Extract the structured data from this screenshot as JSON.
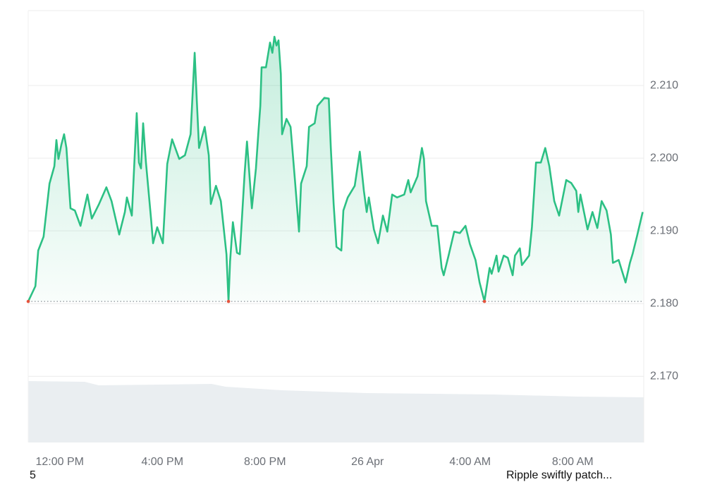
{
  "chart_data": {
    "type": "line",
    "color": "#2cc084",
    "grid": true,
    "x": [
      10.77,
      11.05,
      11.16,
      11.37,
      11.6,
      11.79,
      11.87,
      11.95,
      12.06,
      12.17,
      12.26,
      12.42,
      12.59,
      12.81,
      13.08,
      13.25,
      13.52,
      13.82,
      14.02,
      14.32,
      14.54,
      14.62,
      14.81,
      15.0,
      15.09,
      15.17,
      15.25,
      15.36,
      15.56,
      15.64,
      15.8,
      16.02,
      16.19,
      16.38,
      16.66,
      16.88,
      17.1,
      17.26,
      17.34,
      17.43,
      17.65,
      17.81,
      17.89,
      18.09,
      18.28,
      18.5,
      18.58,
      18.64,
      18.75,
      18.91,
      19.02,
      19.21,
      19.3,
      19.49,
      19.65,
      19.74,
      19.82,
      19.87,
      20.04,
      20.2,
      20.29,
      20.37,
      20.45,
      20.53,
      20.62,
      20.67,
      20.84,
      21.0,
      21.17,
      21.33,
      21.41,
      21.63,
      21.72,
      21.94,
      22.05,
      22.32,
      22.49,
      22.57,
      22.68,
      22.79,
      22.98,
      23.06,
      23.23,
      23.5,
      23.7,
      23.86,
      23.97,
      24.05,
      24.25,
      24.41,
      24.6,
      24.77,
      24.96,
      25.15,
      25.43,
      25.59,
      25.68,
      25.95,
      26.12,
      26.2,
      26.28,
      26.5,
      26.72,
      26.89,
      26.97,
      27.16,
      27.38,
      27.6,
      27.82,
      27.99,
      28.21,
      28.37,
      28.56,
      28.65,
      28.76,
      28.84,
      29.03,
      29.11,
      29.31,
      29.47,
      29.66,
      29.75,
      29.94,
      30.02,
      30.3,
      30.41,
      30.57,
      30.76,
      30.93,
      31.09,
      31.28,
      31.47,
      31.75,
      31.94,
      32.14,
      32.22,
      32.3,
      32.58,
      32.77,
      32.96,
      33.13,
      33.32,
      33.49,
      33.57,
      33.79,
      34.06,
      34.23,
      34.34,
      34.51,
      34.73
    ],
    "values": [
      2.1803,
      2.1824,
      2.1873,
      2.1892,
      2.1965,
      2.1989,
      2.2025,
      2.1999,
      2.2018,
      2.2033,
      2.2014,
      2.1931,
      2.1928,
      2.1907,
      2.195,
      2.1917,
      2.1936,
      2.196,
      2.1941,
      2.1895,
      2.1926,
      2.1946,
      2.1921,
      2.2062,
      2.1994,
      2.1986,
      2.2048,
      2.1994,
      2.1917,
      2.1883,
      2.1905,
      2.1883,
      2.1992,
      2.2026,
      2.1999,
      2.2004,
      2.2033,
      2.2145,
      2.2082,
      2.2014,
      2.2043,
      2.2004,
      2.1937,
      2.1962,
      2.1941,
      2.1868,
      2.1803,
      2.1858,
      2.1912,
      2.187,
      2.1868,
      2.198,
      2.2023,
      2.1931,
      2.1986,
      2.2033,
      2.2072,
      2.2125,
      2.2125,
      2.2159,
      2.2145,
      2.2167,
      2.2155,
      2.2162,
      2.2116,
      2.2033,
      2.2054,
      2.2043,
      2.197,
      2.1899,
      2.1965,
      2.1989,
      2.2043,
      2.2048,
      2.2072,
      2.2083,
      2.2082,
      2.2014,
      2.1937,
      2.1878,
      2.1873,
      2.1928,
      2.1946,
      2.1962,
      2.2009,
      2.1955,
      2.1926,
      2.1946,
      2.1902,
      2.1883,
      2.1921,
      2.1899,
      2.195,
      2.1946,
      2.195,
      2.197,
      2.1953,
      2.1975,
      2.2014,
      2.1999,
      2.1941,
      2.1907,
      2.1907,
      2.1849,
      2.1839,
      2.1866,
      2.1899,
      2.1897,
      2.1907,
      2.1882,
      2.186,
      2.1829,
      2.1803,
      2.1824,
      2.1849,
      2.1841,
      2.1866,
      2.1844,
      2.1866,
      2.1863,
      2.1839,
      2.1866,
      2.1876,
      2.1853,
      2.1866,
      2.1905,
      2.1994,
      2.1994,
      2.2014,
      2.1989,
      2.1941,
      2.1921,
      2.197,
      2.1966,
      2.1955,
      2.1926,
      2.195,
      2.1902,
      2.1926,
      2.1904,
      2.1941,
      2.1928,
      2.1895,
      2.1856,
      2.186,
      2.1829,
      2.1856,
      2.1869,
      2.1893,
      2.1926
    ],
    "xlim": [
      10.77,
      34.77
    ],
    "xticks": [
      {
        "value": 12,
        "label": "12:00 PM"
      },
      {
        "value": 16,
        "label": "4:00 PM"
      },
      {
        "value": 20,
        "label": "8:00 PM"
      },
      {
        "value": 24,
        "label": "26 Apr"
      },
      {
        "value": 28,
        "label": "4:00 AM"
      },
      {
        "value": 32,
        "label": "8:00 AM"
      }
    ],
    "ylim": [
      2.1609,
      2.2203
    ],
    "yticks": [
      {
        "value": 2.17,
        "label": "2.170"
      },
      {
        "value": 2.18,
        "label": "2.180"
      },
      {
        "value": 2.19,
        "label": "2.190"
      },
      {
        "value": 2.2,
        "label": "2.200"
      },
      {
        "value": 2.21,
        "label": "2.210"
      }
    ],
    "reference_line": 2.1803,
    "reference_color": "#e5533d"
  },
  "footer": {
    "left": "5",
    "right": "Ripple swiftly patch..."
  }
}
